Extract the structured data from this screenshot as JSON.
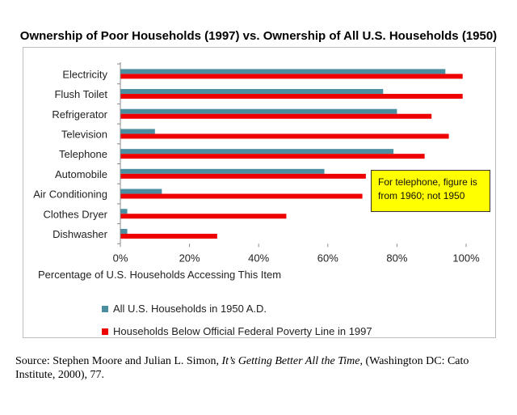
{
  "chart_data": {
    "type": "bar",
    "orientation": "horizontal",
    "title": "Ownership of Poor Households (1997) vs. Ownership of All U.S. Households (1950)",
    "xlabel": "Percentage of U.S. Households  Accessing This Item",
    "ylabel": "",
    "xlim": [
      0,
      100
    ],
    "x_ticks": [
      "0%",
      "20%",
      "40%",
      "60%",
      "80%",
      "100%"
    ],
    "categories": [
      "Electricity",
      "Flush Toilet",
      "Refrigerator",
      "Television",
      "Telephone",
      "Automobile",
      "Air Conditioning",
      "Clothes Dryer",
      "Dishwasher"
    ],
    "series": [
      {
        "name": "All U.S. Households  in 1950 A.D.",
        "color": "#4a8ea0",
        "values": [
          94,
          76,
          80,
          10,
          79,
          59,
          12,
          2,
          2
        ]
      },
      {
        "name": "Households Below Official Federal Poverty Line in 1997",
        "color": "#ee0000",
        "values": [
          99,
          99,
          90,
          95,
          88,
          71,
          70,
          48,
          28
        ]
      }
    ],
    "grid": false,
    "legend": "bottom-left",
    "annotation": "For telephone, figure is from 1960; not 1950"
  },
  "source": {
    "prefix": "Source: Stephen Moore and Julian L. Simon, ",
    "book_title": "It’s Getting Better All the Time",
    "suffix": ", (Washington DC: Cato Institute, 2000), 77."
  }
}
